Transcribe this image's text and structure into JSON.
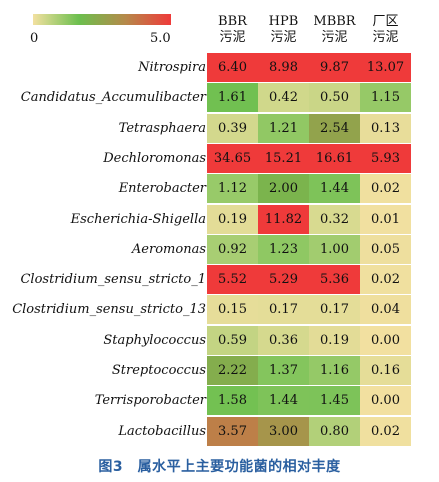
{
  "chart_data": {
    "type": "heatmap",
    "columns": [
      {
        "line1": "BBR",
        "line2": "污泥"
      },
      {
        "line1": "HPB",
        "line2": "污泥"
      },
      {
        "line1": "MBBR",
        "line2": "污泥"
      },
      {
        "line1": "厂区",
        "line2": "污泥"
      }
    ],
    "rows": [
      "Nitrospira",
      "Candidatus_Accumulibacter",
      "Tetrasphaera",
      "Dechloromonas",
      "Enterobacter",
      "Escherichia-Shigella",
      "Aeromonas",
      "Clostridium_sensu_stricto_1",
      "Clostridium_sensu_stricto_13",
      "Staphylococcus",
      "Streptococcus",
      "Terrisporobacter",
      "Lactobacillus"
    ],
    "values": [
      [
        6.4,
        8.98,
        9.87,
        13.07
      ],
      [
        1.61,
        0.42,
        0.5,
        1.15
      ],
      [
        0.39,
        1.21,
        2.54,
        0.13
      ],
      [
        34.65,
        15.21,
        16.61,
        5.93
      ],
      [
        1.12,
        2.0,
        1.44,
        0.02
      ],
      [
        0.19,
        11.82,
        0.32,
        0.01
      ],
      [
        0.92,
        1.23,
        1.0,
        0.05
      ],
      [
        5.52,
        5.29,
        5.36,
        0.02
      ],
      [
        0.15,
        0.17,
        0.17,
        0.04
      ],
      [
        0.59,
        0.36,
        0.19,
        0.0
      ],
      [
        2.22,
        1.37,
        1.16,
        0.16
      ],
      [
        1.58,
        1.44,
        1.45,
        0.0
      ],
      [
        3.57,
        3.0,
        0.8,
        0.02
      ]
    ],
    "value_labels": [
      [
        "6.40",
        "8.98",
        "9.87",
        "13.07"
      ],
      [
        "1.61",
        "0.42",
        "0.50",
        "1.15"
      ],
      [
        "0.39",
        "1.21",
        "2.54",
        "0.13"
      ],
      [
        "34.65",
        "15.21",
        "16.61",
        "5.93"
      ],
      [
        "1.12",
        "2.00",
        "1.44",
        "0.02"
      ],
      [
        "0.19",
        "11.82",
        "0.32",
        "0.01"
      ],
      [
        "0.92",
        "1.23",
        "1.00",
        "0.05"
      ],
      [
        "5.52",
        "5.29",
        "5.36",
        "0.02"
      ],
      [
        "0.15",
        "0.17",
        "0.17",
        "0.04"
      ],
      [
        "0.59",
        "0.36",
        "0.19",
        "0.00"
      ],
      [
        "2.22",
        "1.37",
        "1.16",
        "0.16"
      ],
      [
        "1.58",
        "1.44",
        "1.45",
        "0.00"
      ],
      [
        "3.57",
        "3.00",
        "0.80",
        "0.02"
      ]
    ],
    "colorscale": {
      "min": 0,
      "max": 5.0,
      "min_label": "0",
      "max_label": "5.0",
      "colors": [
        "#f2e0a0",
        "#6cbf4e",
        "#b58a4a",
        "#ef3a3a"
      ]
    },
    "caption": "图3　属水平上主要功能菌的相对丰度"
  }
}
